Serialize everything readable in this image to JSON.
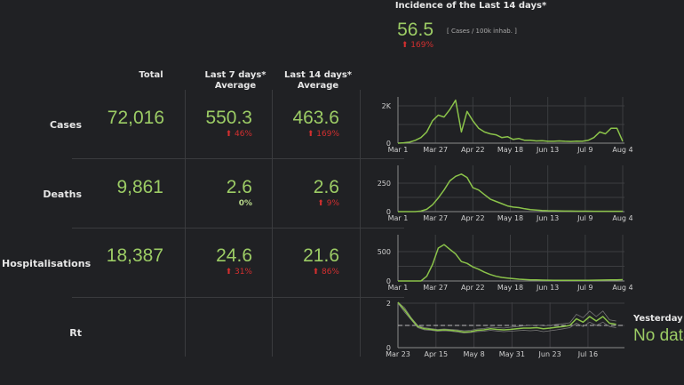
{
  "incidence": {
    "title": "Incidence of the Last 14 days*",
    "value": "56.5",
    "unit": "[ Cases / 100k inhab. ]",
    "change": "169%",
    "change_dir": "up"
  },
  "columns": {
    "total": "Total",
    "last7": [
      "Last 7 days*",
      "Average"
    ],
    "last14": [
      "Last 14 days*",
      "Average"
    ]
  },
  "rows": [
    {
      "label": "Cases",
      "total": "72,016",
      "avg7": "550.3",
      "chg7": "46%",
      "dir7": "up",
      "avg14": "463.6",
      "chg14": "169%",
      "dir14": "up"
    },
    {
      "label": "Deaths",
      "total": "9,861",
      "avg7": "2.6",
      "chg7": "0%",
      "dir7": "none",
      "avg14": "2.6",
      "chg14": "9%",
      "dir14": "up"
    },
    {
      "label": "Hospitalisations",
      "total": "18,387",
      "avg7": "24.6",
      "chg7": "31%",
      "dir7": "up",
      "avg14": "21.6",
      "chg14": "86%",
      "dir14": "up"
    },
    {
      "label": "Rt"
    }
  ],
  "yesterday": {
    "label": "Yesterday",
    "value": "No data"
  },
  "colors": {
    "accent": "#8bc34a",
    "increase": "#d32f2f",
    "background": "#202124"
  },
  "chart_data": [
    {
      "type": "line",
      "name": "cases",
      "x_ticks": [
        "Mar 1",
        "Mar 27",
        "Apr 22",
        "May 18",
        "Jun 13",
        "Jul 9",
        "Aug 4"
      ],
      "y_ticks": [
        "0",
        "2K"
      ],
      "ylim": [
        0,
        2400
      ],
      "x_step_days": 4,
      "x_start": "Mar 1",
      "values": [
        0,
        20,
        50,
        150,
        300,
        600,
        1200,
        1500,
        1400,
        1800,
        2300,
        600,
        1700,
        1200,
        800,
        600,
        500,
        450,
        300,
        350,
        200,
        250,
        150,
        150,
        120,
        130,
        100,
        100,
        120,
        100,
        90,
        110,
        100,
        150,
        300,
        600,
        500,
        800,
        800,
        100
      ]
    },
    {
      "type": "line",
      "name": "deaths",
      "x_ticks": [
        "Mar 1",
        "Mar 27",
        "Apr 22",
        "May 18",
        "Jun 13",
        "Jul 9",
        "Aug 4"
      ],
      "y_ticks": [
        "0",
        "250"
      ],
      "ylim": [
        0,
        400
      ],
      "x_step_days": 4,
      "x_start": "Mar 1",
      "values": [
        0,
        0,
        0,
        0,
        5,
        20,
        60,
        120,
        190,
        270,
        310,
        330,
        300,
        210,
        190,
        150,
        110,
        90,
        70,
        50,
        40,
        35,
        25,
        18,
        14,
        10,
        8,
        7,
        6,
        5,
        5,
        4,
        4,
        4,
        3,
        3,
        3,
        3,
        3,
        3
      ]
    },
    {
      "type": "line",
      "name": "hospitalisations",
      "x_ticks": [
        "Mar 1",
        "Mar 27",
        "Apr 22",
        "May 18",
        "Jun 13",
        "Jul 9",
        "Aug 4"
      ],
      "y_ticks": [
        "0",
        "500"
      ],
      "ylim": [
        0,
        780
      ],
      "x_step_days": 4,
      "x_start": "Mar 1",
      "values": [
        0,
        0,
        0,
        0,
        0,
        80,
        280,
        560,
        620,
        540,
        460,
        330,
        300,
        240,
        200,
        150,
        110,
        80,
        60,
        50,
        40,
        30,
        25,
        20,
        18,
        15,
        14,
        12,
        12,
        11,
        10,
        10,
        10,
        12,
        14,
        15,
        16,
        18,
        20,
        22
      ]
    },
    {
      "type": "line",
      "name": "rt",
      "x_ticks": [
        "Mar 23",
        "Apr 15",
        "May 8",
        "May 31",
        "Jun 23",
        "Jul 16"
      ],
      "y_ticks": [
        "0",
        "2"
      ],
      "ylim": [
        0,
        2
      ],
      "reference_line": 1,
      "x_step_days": 4,
      "x_start": "Mar 23",
      "values": [
        2.1,
        1.7,
        1.3,
        0.95,
        0.85,
        0.82,
        0.78,
        0.8,
        0.78,
        0.75,
        0.7,
        0.72,
        0.78,
        0.8,
        0.85,
        0.82,
        0.8,
        0.82,
        0.85,
        0.88,
        0.88,
        0.9,
        0.85,
        0.88,
        0.92,
        0.95,
        1.0,
        1.3,
        1.15,
        1.4,
        1.2,
        1.4,
        1.1,
        1.05
      ],
      "lower": [
        2.0,
        1.6,
        1.25,
        0.9,
        0.8,
        0.78,
        0.74,
        0.76,
        0.74,
        0.7,
        0.66,
        0.68,
        0.72,
        0.74,
        0.78,
        0.75,
        0.72,
        0.74,
        0.76,
        0.78,
        0.76,
        0.78,
        0.72,
        0.76,
        0.8,
        0.85,
        0.9,
        1.1,
        0.95,
        1.15,
        1.0,
        1.15,
        0.95,
        0.9
      ],
      "upper": [
        2.2,
        1.8,
        1.35,
        1.0,
        0.9,
        0.86,
        0.82,
        0.84,
        0.82,
        0.8,
        0.76,
        0.78,
        0.84,
        0.86,
        0.92,
        0.9,
        0.88,
        0.92,
        0.95,
        0.98,
        1.0,
        1.02,
        0.98,
        1.0,
        1.05,
        1.08,
        1.12,
        1.5,
        1.35,
        1.65,
        1.4,
        1.65,
        1.25,
        1.2
      ]
    }
  ]
}
